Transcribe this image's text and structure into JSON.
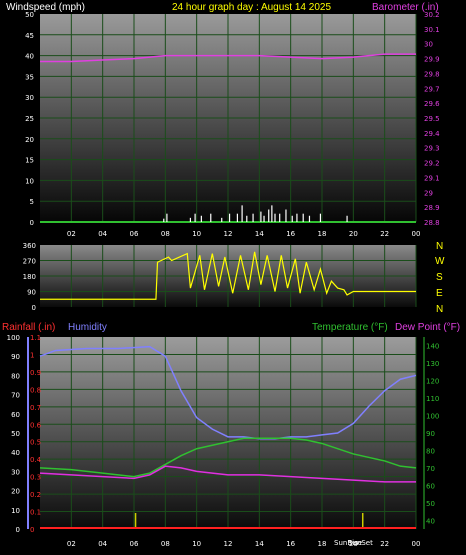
{
  "header": {
    "wind_label": "Windspeed (mph)",
    "date_label": "24 hour graph day : August 14 2025",
    "baro_label": "Barometer (.in)"
  },
  "lower_header": {
    "rain_label": "Rainfall (.in)",
    "humidity_label": "Humidity",
    "temp_label": "Temperature (°F)",
    "dew_label": "Dew Point (°F)"
  },
  "direction_letters": [
    "N",
    "W",
    "S",
    "E",
    "N"
  ],
  "sun_labels": {
    "sunrise": "SunRise",
    "sunset": "SunSet"
  },
  "colors": {
    "windspeed": "#ffffff",
    "barometer": "#e040e0",
    "direction": "#ffff00",
    "humidity": "#8080ff",
    "temperature": "#30c030",
    "dew_point": "#e030e0",
    "rainfall": "#ff2020",
    "sun_marker": "#cccc00",
    "grid": "#1a4d1a"
  },
  "x_ticks": [
    "02",
    "04",
    "06",
    "08",
    "10",
    "12",
    "14",
    "16",
    "18",
    "20",
    "22",
    "00"
  ],
  "chart_data": [
    {
      "type": "line",
      "x_range_hours": [
        0,
        24
      ],
      "y_left": {
        "label": "Windspeed (mph)",
        "ylim": [
          0,
          50
        ],
        "ticks": [
          "0",
          "5",
          "10",
          "15",
          "20",
          "25",
          "30",
          "35",
          "40",
          "45",
          "50"
        ]
      },
      "y_right": {
        "label": "Barometer (.in)",
        "ylim": [
          28.8,
          30.2
        ],
        "ticks": [
          "28.8",
          "28.9",
          "29",
          "29.1",
          "29.2",
          "29.3",
          "29.4",
          "29.5",
          "29.6",
          "29.7",
          "29.8",
          "29.9",
          "30",
          "30.1",
          "30.2"
        ]
      },
      "series": [
        {
          "name": "Barometer (.in)",
          "axis": "right",
          "x": [
            0,
            2,
            4,
            6,
            8,
            10,
            12,
            14,
            16,
            18,
            20,
            22,
            24
          ],
          "values": [
            29.88,
            29.88,
            29.89,
            29.9,
            29.92,
            29.92,
            29.92,
            29.92,
            29.91,
            29.9,
            29.91,
            29.93,
            29.93
          ]
        },
        {
          "name": "Windspeed (mph)",
          "axis": "left",
          "x": [
            7.9,
            8.1,
            9.6,
            9.9,
            10.3,
            10.9,
            11.6,
            12.1,
            12.6,
            12.9,
            13.2,
            13.6,
            14.1,
            14.3,
            14.6,
            14.8,
            15.0,
            15.3,
            15.7,
            16.1,
            16.4,
            16.8,
            17.2,
            17.9,
            19.6
          ],
          "values": [
            0.8,
            2.0,
            1.0,
            2.0,
            1.5,
            2.0,
            1.0,
            2.0,
            2.0,
            4.0,
            1.5,
            2.0,
            2.5,
            1.5,
            3.0,
            4.0,
            2.0,
            2.0,
            3.0,
            1.5,
            2.0,
            2.0,
            1.5,
            2.0,
            1.5
          ]
        }
      ]
    },
    {
      "type": "line",
      "x_range_hours": [
        0,
        24
      ],
      "y_left": {
        "label": "Wind direction",
        "ylim": [
          0,
          360
        ],
        "ticks": [
          "0",
          "90",
          "180",
          "270",
          "360"
        ]
      },
      "series": [
        {
          "name": "Wind direction",
          "x": [
            0,
            7.4,
            7.5,
            8.2,
            8.4,
            9.4,
            9.6,
            10.2,
            10.5,
            11.0,
            11.4,
            11.8,
            12.3,
            12.8,
            13.3,
            13.7,
            14.1,
            14.5,
            15.0,
            15.4,
            15.8,
            16.3,
            16.6,
            17.0,
            17.5,
            17.9,
            18.3,
            18.6,
            19.0,
            19.4,
            19.6,
            20.0,
            24
          ],
          "values": [
            45,
            45,
            260,
            290,
            270,
            310,
            110,
            300,
            100,
            310,
            120,
            290,
            80,
            300,
            100,
            320,
            130,
            300,
            90,
            300,
            110,
            280,
            80,
            260,
            100,
            220,
            80,
            150,
            110,
            100,
            70,
            90,
            90
          ]
        }
      ]
    },
    {
      "type": "line",
      "x_range_hours": [
        0,
        24
      ],
      "y_left_rain": {
        "label": "Rainfall (.in)",
        "ylim": [
          0,
          1.1
        ],
        "ticks": [
          "0",
          "0.1",
          "0.2",
          "0.3",
          "0.4",
          "0.5",
          "0.6",
          "0.7",
          "0.8",
          "0.9",
          "1",
          "1.1"
        ]
      },
      "y_left_humidity": {
        "label": "Humidity",
        "ylim": [
          0,
          100
        ],
        "ticks": [
          "0",
          "10",
          "20",
          "30",
          "40",
          "50",
          "60",
          "70",
          "80",
          "90",
          "100"
        ]
      },
      "y_right": {
        "label": "Temperature (°F) / Dew Point (°F)",
        "ylim": [
          35,
          145
        ],
        "ticks": [
          "40",
          "50",
          "60",
          "70",
          "80",
          "90",
          "100",
          "110",
          "120",
          "130",
          "140"
        ]
      },
      "sunrise_hour": 6.1,
      "sunset_hour": 20.6,
      "series": [
        {
          "name": "Humidity",
          "axis": "humidity",
          "x": [
            0,
            1,
            3,
            5,
            7,
            8,
            9,
            10,
            11,
            12,
            13,
            14,
            15,
            16,
            17,
            18,
            19,
            20,
            21,
            22,
            23,
            24
          ],
          "values": [
            90,
            93,
            94,
            94,
            95,
            90,
            72,
            58,
            52,
            48,
            48,
            47,
            47,
            48,
            48,
            49,
            50,
            55,
            64,
            72,
            78,
            80
          ]
        },
        {
          "name": "Temperature (°F)",
          "axis": "temp",
          "x": [
            0,
            2,
            4,
            6,
            7,
            8,
            9,
            10,
            11,
            12,
            13,
            14,
            15,
            16,
            17,
            18,
            19,
            20,
            21,
            22,
            23,
            24
          ],
          "values": [
            70,
            69,
            67,
            65,
            67,
            72,
            77,
            81,
            83,
            85,
            87,
            87,
            87,
            87,
            86,
            84,
            81,
            78,
            76,
            74,
            71,
            70
          ]
        },
        {
          "name": "Dew Point (°F)",
          "axis": "temp",
          "x": [
            0,
            2,
            4,
            6,
            7,
            8,
            9,
            10,
            11,
            12,
            14,
            16,
            18,
            20,
            22,
            24
          ],
          "values": [
            67,
            66,
            65,
            64,
            66,
            71,
            70,
            68,
            67,
            66,
            66,
            65,
            64,
            63,
            62,
            62
          ]
        },
        {
          "name": "Rainfall (.in)",
          "axis": "rain",
          "x": [
            0,
            24
          ],
          "values": [
            0,
            0
          ]
        }
      ]
    }
  ]
}
